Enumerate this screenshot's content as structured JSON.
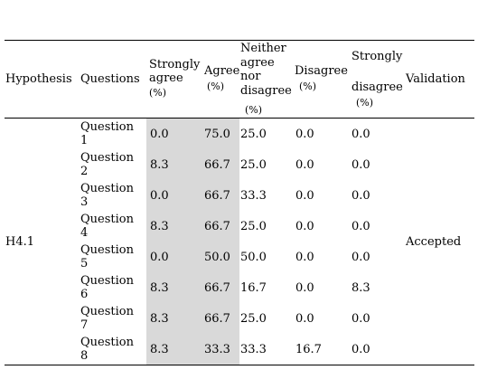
{
  "headers": {
    "hypothesis": "Hypothesis",
    "questions": "Questions",
    "strongly_agree": [
      "Strongly",
      "agree",
      "(%)"
    ],
    "agree": [
      "Agree",
      "(%)"
    ],
    "neither": [
      "Neither",
      "agree",
      "nor",
      "disagree",
      "(%)"
    ],
    "disagree": [
      "Disagree",
      "(%)"
    ],
    "strongly_disagree": [
      "Strongly",
      "disagree",
      "(%)"
    ],
    "validation": "Validation"
  },
  "hypothesis": "H4.1",
  "validation": "Accepted",
  "rows": [
    {
      "q": [
        "Question",
        "1"
      ],
      "sa": "0.0",
      "a": "75.0",
      "n": "25.0",
      "d": "0.0",
      "sd": "0.0"
    },
    {
      "q": [
        "Question",
        "2"
      ],
      "sa": "8.3",
      "a": "66.7",
      "n": "25.0",
      "d": "0.0",
      "sd": "0.0"
    },
    {
      "q": [
        "Question",
        "3"
      ],
      "sa": "0.0",
      "a": "66.7",
      "n": "33.3",
      "d": "0.0",
      "sd": "0.0"
    },
    {
      "q": [
        "Question",
        "4"
      ],
      "sa": "8.3",
      "a": "66.7",
      "n": "25.0",
      "d": "0.0",
      "sd": "0.0"
    },
    {
      "q": [
        "Question",
        "5"
      ],
      "sa": "0.0",
      "a": "50.0",
      "n": "50.0",
      "d": "0.0",
      "sd": "0.0"
    },
    {
      "q": [
        "Question",
        "6"
      ],
      "sa": "8.3",
      "a": "66.7",
      "n": "16.7",
      "d": "0.0",
      "sd": "8.3"
    },
    {
      "q": [
        "Question",
        "7"
      ],
      "sa": "8.3",
      "a": "66.7",
      "n": "25.0",
      "d": "0.0",
      "sd": "0.0"
    },
    {
      "q": [
        "Question",
        "8"
      ],
      "sa": "8.3",
      "a": "33.3",
      "n": "33.3",
      "d": "16.7",
      "sd": "0.0"
    }
  ]
}
